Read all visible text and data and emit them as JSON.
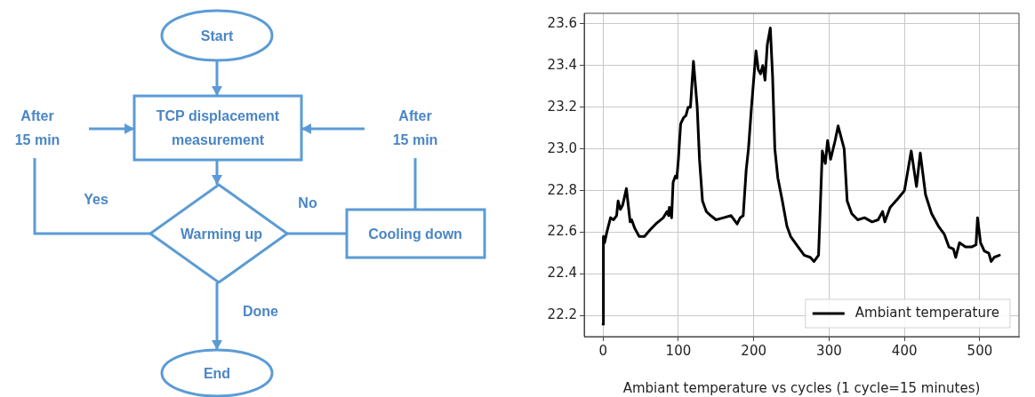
{
  "chart_data": [
    {
      "type": "other",
      "annotations": [
        "Start",
        "TCP displacement measurement",
        "After 15 min",
        "After 15 min",
        "Yes",
        "No",
        "Warming up",
        "Cooling down",
        "Done",
        "End"
      ]
    },
    {
      "type": "line",
      "xlabel": "Ambiant temperature vs cycles (1 cycle=15 minutes)",
      "xlim": [
        -25,
        552
      ],
      "ylim": [
        22.1,
        23.65
      ],
      "xticks": [
        0,
        100,
        200,
        300,
        400,
        500
      ],
      "yticks": [
        22.2,
        22.4,
        22.6,
        22.8,
        {
          "value": 23.0,
          "label": "23.0"
        },
        23.2,
        23.4,
        23.6
      ],
      "grid": true,
      "legend": "bottom right",
      "marker": "none",
      "line_style": "solid",
      "series": [
        {
          "name": "Ambiant temperature",
          "color": "#000000",
          "x": [
            0,
            0.5,
            2,
            5,
            10,
            14,
            18,
            20,
            23,
            26,
            31,
            36,
            38,
            42,
            48,
            55,
            62,
            70,
            80,
            85,
            87,
            88,
            91,
            93,
            96,
            98,
            100,
            103,
            107,
            110,
            113,
            116,
            120,
            125,
            128,
            132,
            137,
            143,
            150,
            160,
            170,
            178,
            182,
            186,
            190,
            193,
            197,
            201,
            203,
            206,
            209,
            212,
            215,
            218,
            222,
            225,
            228,
            232,
            238,
            244,
            249,
            259,
            267,
            275,
            280,
            286,
            291,
            295,
            298,
            302,
            308,
            312,
            320,
            324,
            330,
            338,
            347,
            357,
            365,
            371,
            374,
            381,
            391,
            400,
            409,
            416,
            421,
            428,
            436,
            445,
            453,
            459,
            465,
            468,
            473,
            481,
            489,
            495,
            497,
            501,
            506,
            512,
            515,
            519,
            526
          ],
          "values": [
            22.16,
            22.58,
            22.55,
            22.6,
            22.67,
            22.66,
            22.68,
            22.75,
            22.71,
            22.73,
            22.81,
            22.65,
            22.66,
            22.62,
            22.58,
            22.58,
            22.61,
            22.64,
            22.67,
            22.7,
            22.68,
            22.72,
            22.67,
            22.84,
            22.87,
            22.86,
            22.95,
            23.12,
            23.15,
            23.16,
            23.2,
            23.2,
            23.42,
            23.2,
            22.95,
            22.75,
            22.7,
            22.68,
            22.66,
            22.67,
            22.68,
            22.64,
            22.67,
            22.68,
            22.9,
            23.0,
            23.2,
            23.38,
            23.47,
            23.38,
            23.36,
            23.4,
            23.33,
            23.5,
            23.58,
            23.35,
            23.0,
            22.86,
            22.75,
            22.63,
            22.58,
            22.53,
            22.49,
            22.48,
            22.46,
            22.49,
            22.99,
            22.93,
            23.04,
            22.95,
            23.04,
            23.11,
            23.0,
            22.75,
            22.69,
            22.66,
            22.67,
            22.65,
            22.66,
            22.7,
            22.65,
            22.72,
            22.76,
            22.8,
            22.99,
            22.82,
            22.98,
            22.78,
            22.69,
            22.63,
            22.59,
            22.53,
            22.52,
            22.48,
            22.55,
            22.53,
            22.53,
            22.54,
            22.67,
            22.55,
            22.51,
            22.5,
            22.46,
            22.48,
            22.49
          ]
        }
      ]
    }
  ]
}
